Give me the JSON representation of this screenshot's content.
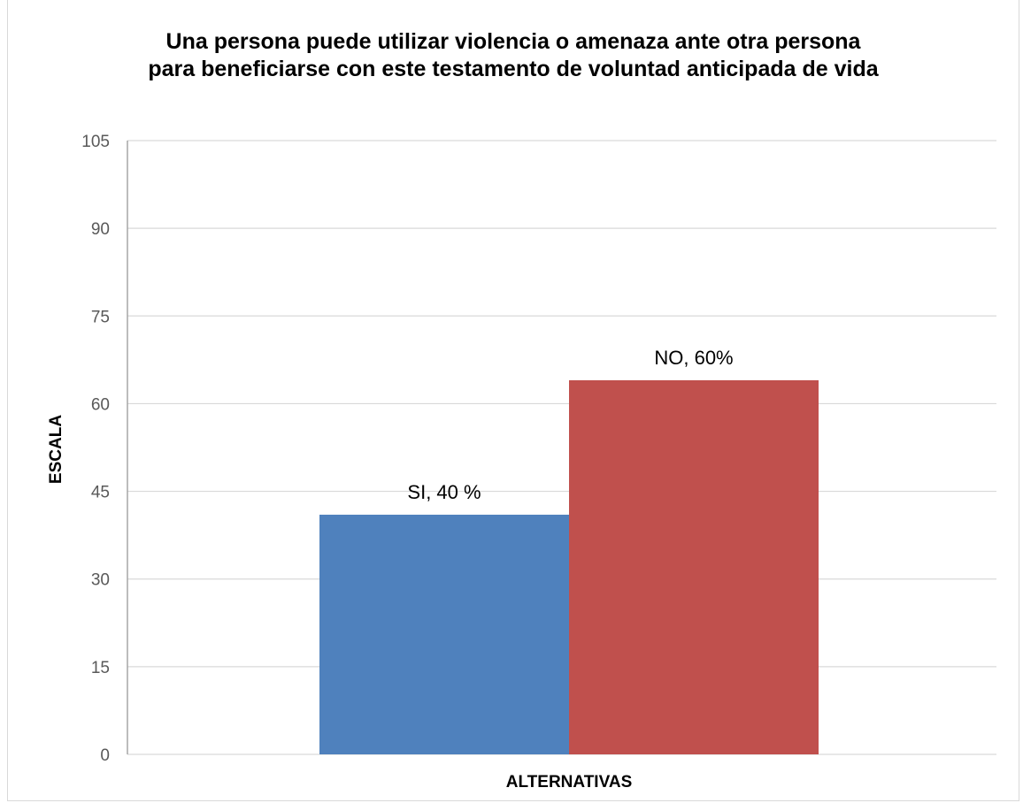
{
  "chart_data": {
    "type": "bar",
    "title": "Una persona puede utilizar violencia o amenaza ante otra persona para beneficiarse con este testamento de voluntad anticipada de vida",
    "xlabel": "ALTERNATIVAS",
    "ylabel": "ESCALA",
    "ylim": [
      0,
      105
    ],
    "yticks": [
      0,
      15,
      30,
      45,
      60,
      75,
      90,
      105
    ],
    "grid": true,
    "legend": "none",
    "series": [
      {
        "values": [
          41
        ],
        "color": "#4f81bd",
        "data_label": "SI, 40 %"
      },
      {
        "values": [
          64
        ],
        "color": "#c0504d",
        "data_label": "NO, 60%"
      }
    ]
  }
}
